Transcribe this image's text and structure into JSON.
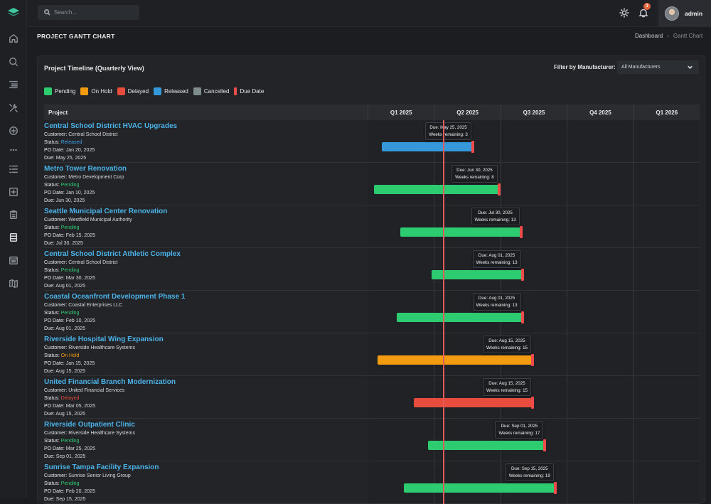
{
  "topbar": {
    "search_placeholder": "Search...",
    "notification_count": "3",
    "user_name": "admin"
  },
  "page": {
    "title": "PROJECT GANTT CHART",
    "breadcrumb": {
      "home": "Dashboard",
      "separator": "›",
      "current": "Gantt Chart"
    }
  },
  "card": {
    "title": "Project Timeline (Quarterly View)",
    "filter_label": "Filter by Manufacturer:",
    "filter_value": "All Manufacturers"
  },
  "legend": [
    {
      "label": "Pending",
      "color": "#2ecc71"
    },
    {
      "label": "On Hold",
      "color": "#f39c12"
    },
    {
      "label": "Delayed",
      "color": "#e74c3c"
    },
    {
      "label": "Released",
      "color": "#3498db"
    },
    {
      "label": "Cancelled",
      "color": "#7f8c8d"
    },
    {
      "label": "Due Date",
      "color": "#ef4b4b"
    }
  ],
  "table": {
    "project_header": "Project",
    "quarters": [
      "Q1 2025",
      "Q2 2025",
      "Q3 2025",
      "Q4 2025",
      "Q1 2026"
    ]
  },
  "labels": {
    "customer": "Customer:",
    "status": "Status:",
    "po_date": "PO Date:",
    "due": "Due:",
    "due_prefix": "Due:",
    "weeks_remaining": "Weeks remaining:"
  },
  "timeline": {
    "start": "2025-01-01",
    "end": "2026-04-01",
    "today": "2025-04-15"
  },
  "projects": [
    {
      "name": "Central School District HVAC Upgrades",
      "customer": "Central School District",
      "status": "Released",
      "status_class": "st-released",
      "color": "#3498db",
      "po_date": "Jan 20, 2025",
      "due": "May 25, 2025",
      "tooltip_due": "May 25, 2025",
      "start": "2025-01-20",
      "end": "2025-05-25",
      "weeks_remaining": "3"
    },
    {
      "name": "Metro Tower Renovation",
      "customer": "Metro Development Corp",
      "status": "Pending",
      "status_class": "st-pending",
      "color": "#2ecc71",
      "po_date": "Jan 10, 2025",
      "due": "Jun 30, 2025",
      "tooltip_due": "Jun 30, 2025",
      "start": "2025-01-10",
      "end": "2025-06-30",
      "weeks_remaining": "8"
    },
    {
      "name": "Seattle Municipal Center Renovation",
      "customer": "Westfield Municipal Authority",
      "status": "Pending",
      "status_class": "st-pending",
      "color": "#2ecc71",
      "po_date": "Feb 15, 2025",
      "due": "Jul 30, 2025",
      "tooltip_due": "Jul 30, 2025",
      "start": "2025-02-15",
      "end": "2025-07-30",
      "weeks_remaining": "13"
    },
    {
      "name": "Central School District Athletic Complex",
      "customer": "Central School District",
      "status": "Pending",
      "status_class": "st-pending",
      "color": "#2ecc71",
      "po_date": "Mar 30, 2025",
      "due": "Aug 01, 2025",
      "tooltip_due": "Aug 01, 2025",
      "start": "2025-03-30",
      "end": "2025-08-01",
      "weeks_remaining": "13"
    },
    {
      "name": "Coastal Oceanfront Development Phase 1",
      "customer": "Coastal Enterprises LLC",
      "status": "Pending",
      "status_class": "st-pending",
      "color": "#2ecc71",
      "po_date": "Feb 10, 2025",
      "due": "Aug 01, 2025",
      "tooltip_due": "Aug 01, 2025",
      "start": "2025-02-10",
      "end": "2025-08-01",
      "weeks_remaining": "13"
    },
    {
      "name": "Riverside Hospital Wing Expansion",
      "customer": "Riverside Healthcare Systems",
      "status": "On Hold",
      "status_class": "st-onhold",
      "color": "#f39c12",
      "po_date": "Jan 15, 2025",
      "due": "Aug 15, 2025",
      "tooltip_due": "Aug 15, 2025",
      "start": "2025-01-15",
      "end": "2025-08-15",
      "weeks_remaining": "15"
    },
    {
      "name": "United Financial Branch Modernization",
      "customer": "United Financial Services",
      "status": "Delayed",
      "status_class": "st-delayed",
      "color": "#e74c3c",
      "po_date": "Mar 05, 2025",
      "due": "Aug 15, 2025",
      "tooltip_due": "Aug 15, 2025",
      "start": "2025-03-05",
      "end": "2025-08-15",
      "weeks_remaining": "15"
    },
    {
      "name": "Riverside Outpatient Clinic",
      "customer": "Riverside Healthcare Systems",
      "status": "Pending",
      "status_class": "st-pending",
      "color": "#2ecc71",
      "po_date": "Mar 25, 2025",
      "due": "Sep 01, 2025",
      "tooltip_due": "Sep 01, 2025",
      "start": "2025-03-25",
      "end": "2025-09-01",
      "weeks_remaining": "17"
    },
    {
      "name": "Sunrise Tampa Facility Expansion",
      "customer": "Sunrise Senior Living Group",
      "status": "Pending",
      "status_class": "st-pending",
      "color": "#2ecc71",
      "po_date": "Feb 20, 2025",
      "due": "Sep 15, 2025",
      "tooltip_due": "Sep 15, 2025",
      "start": "2025-02-20",
      "end": "2025-09-15",
      "weeks_remaining": "19"
    }
  ]
}
